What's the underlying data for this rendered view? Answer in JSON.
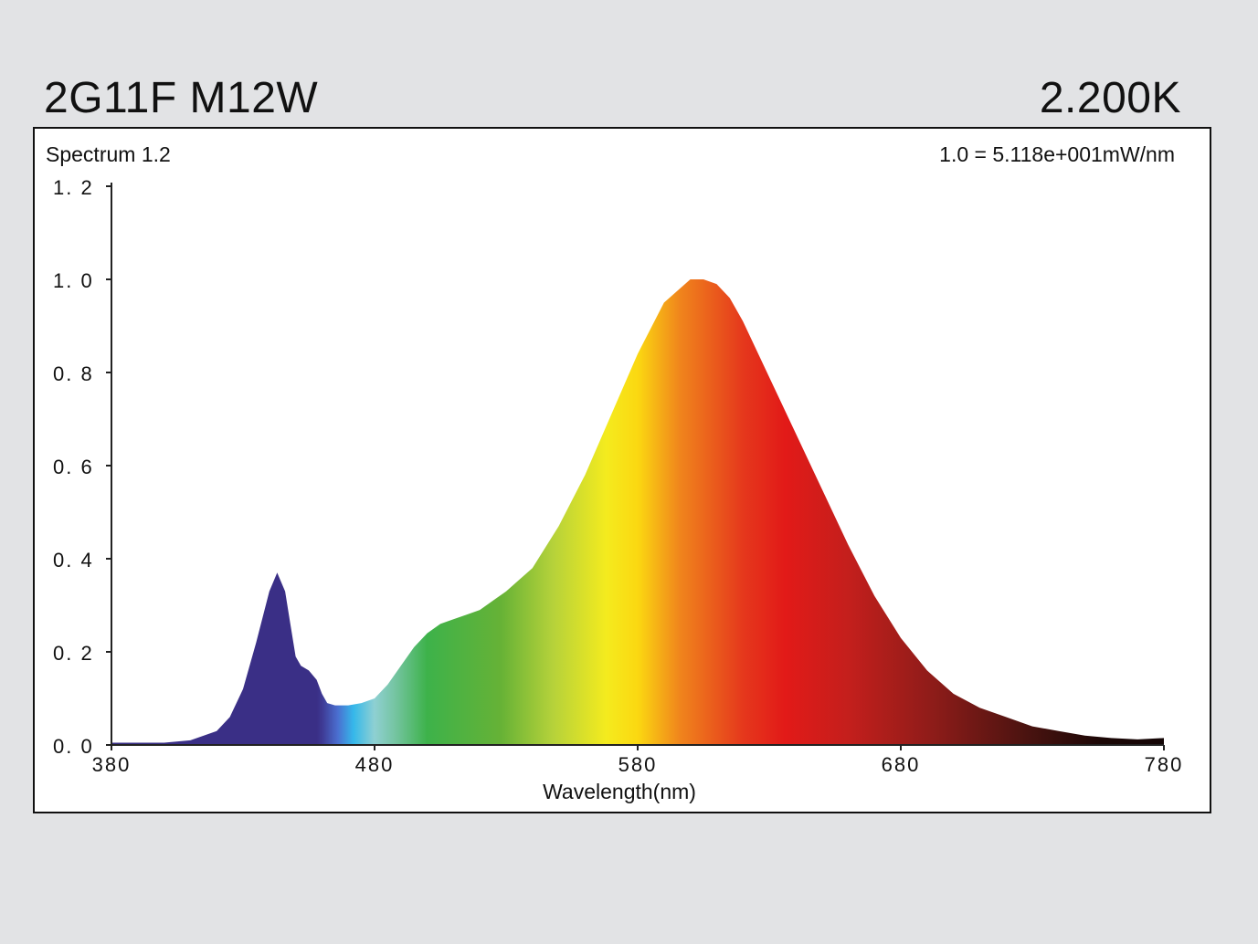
{
  "header": {
    "product": "2G11F M12W",
    "cct": "2.200K"
  },
  "chart_data": {
    "type": "area",
    "title": "Spectrum 1.2",
    "scale_note": "1.0 =   5.118e+001mW/nm",
    "xlabel": "Wavelength(nm)",
    "ylabel": "",
    "xlim": [
      380,
      780
    ],
    "ylim": [
      0,
      1.2
    ],
    "x_ticks": [
      "380",
      "480",
      "580",
      "680",
      "780"
    ],
    "x_tick_values": [
      380,
      480,
      580,
      680,
      780
    ],
    "y_ticks": [
      "0. 0",
      "0. 2",
      "0. 4",
      "0. 6",
      "0. 8",
      "1. 0",
      "1. 2"
    ],
    "y_tick_values": [
      0,
      0.2,
      0.4,
      0.6,
      0.8,
      1.0,
      1.2
    ],
    "fill": "visible-spectrum gradient",
    "series": [
      {
        "x": [
          380,
          400,
          410,
          420,
          425,
          430,
          435,
          440,
          443,
          446,
          448,
          450,
          452,
          455,
          458,
          460,
          462,
          465,
          470,
          475,
          480,
          485,
          490,
          495,
          500,
          505,
          510,
          515,
          520,
          525,
          530,
          540,
          550,
          560,
          570,
          580,
          590,
          600,
          605,
          610,
          615,
          620,
          625,
          630,
          640,
          650,
          660,
          670,
          680,
          690,
          700,
          710,
          720,
          730,
          740,
          750,
          760,
          770,
          780
        ],
        "y": [
          0.005,
          0.005,
          0.01,
          0.03,
          0.06,
          0.12,
          0.22,
          0.33,
          0.37,
          0.33,
          0.26,
          0.19,
          0.17,
          0.16,
          0.14,
          0.11,
          0.09,
          0.085,
          0.085,
          0.09,
          0.1,
          0.13,
          0.17,
          0.21,
          0.24,
          0.26,
          0.27,
          0.28,
          0.29,
          0.31,
          0.33,
          0.38,
          0.47,
          0.58,
          0.71,
          0.84,
          0.95,
          1.0,
          1.0,
          0.99,
          0.96,
          0.91,
          0.85,
          0.79,
          0.67,
          0.55,
          0.43,
          0.32,
          0.23,
          0.16,
          0.11,
          0.08,
          0.06,
          0.04,
          0.03,
          0.02,
          0.015,
          0.012,
          0.015
        ]
      }
    ]
  }
}
